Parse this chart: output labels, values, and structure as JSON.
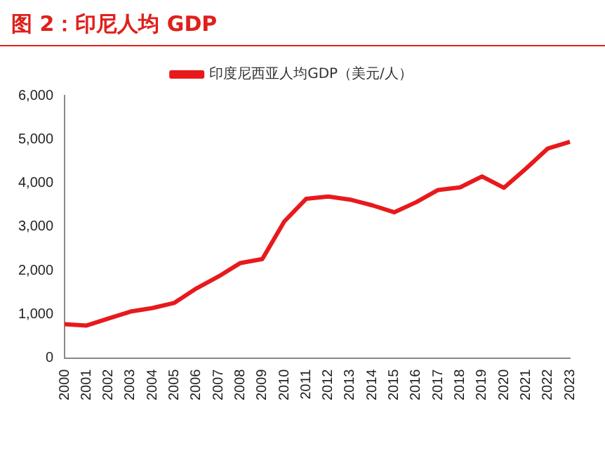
{
  "chart_data": {
    "type": "line",
    "title": "图 2：印尼人均 GDP",
    "categories": [
      "2000",
      "2001",
      "2002",
      "2003",
      "2004",
      "2005",
      "2006",
      "2007",
      "2008",
      "2009",
      "2010",
      "2011",
      "2012",
      "2013",
      "2014",
      "2015",
      "2016",
      "2017",
      "2018",
      "2019",
      "2020",
      "2021",
      "2022",
      "2023"
    ],
    "series": [
      {
        "name": "印度尼西亚人均GDP（美元/人）",
        "color": "#e8191c",
        "values": [
          770,
          740,
          900,
          1060,
          1140,
          1260,
          1590,
          1860,
          2170,
          2260,
          3120,
          3640,
          3690,
          3620,
          3490,
          3330,
          3560,
          3840,
          3900,
          4150,
          3890,
          4330,
          4790,
          4940
        ]
      }
    ],
    "ylim": [
      0,
      6000
    ],
    "yticks": [
      0,
      {
        "value": 1000,
        "label": "1,000"
      },
      {
        "value": 2000,
        "label": "2,000"
      },
      {
        "value": 3000,
        "label": "3,000"
      },
      {
        "value": 4000,
        "label": "4,000"
      },
      {
        "value": 5000,
        "label": "5,000"
      },
      {
        "value": 6000,
        "label": "6,000"
      }
    ],
    "grid": false,
    "legend": "top",
    "marker": "none",
    "line_style": "solid"
  }
}
